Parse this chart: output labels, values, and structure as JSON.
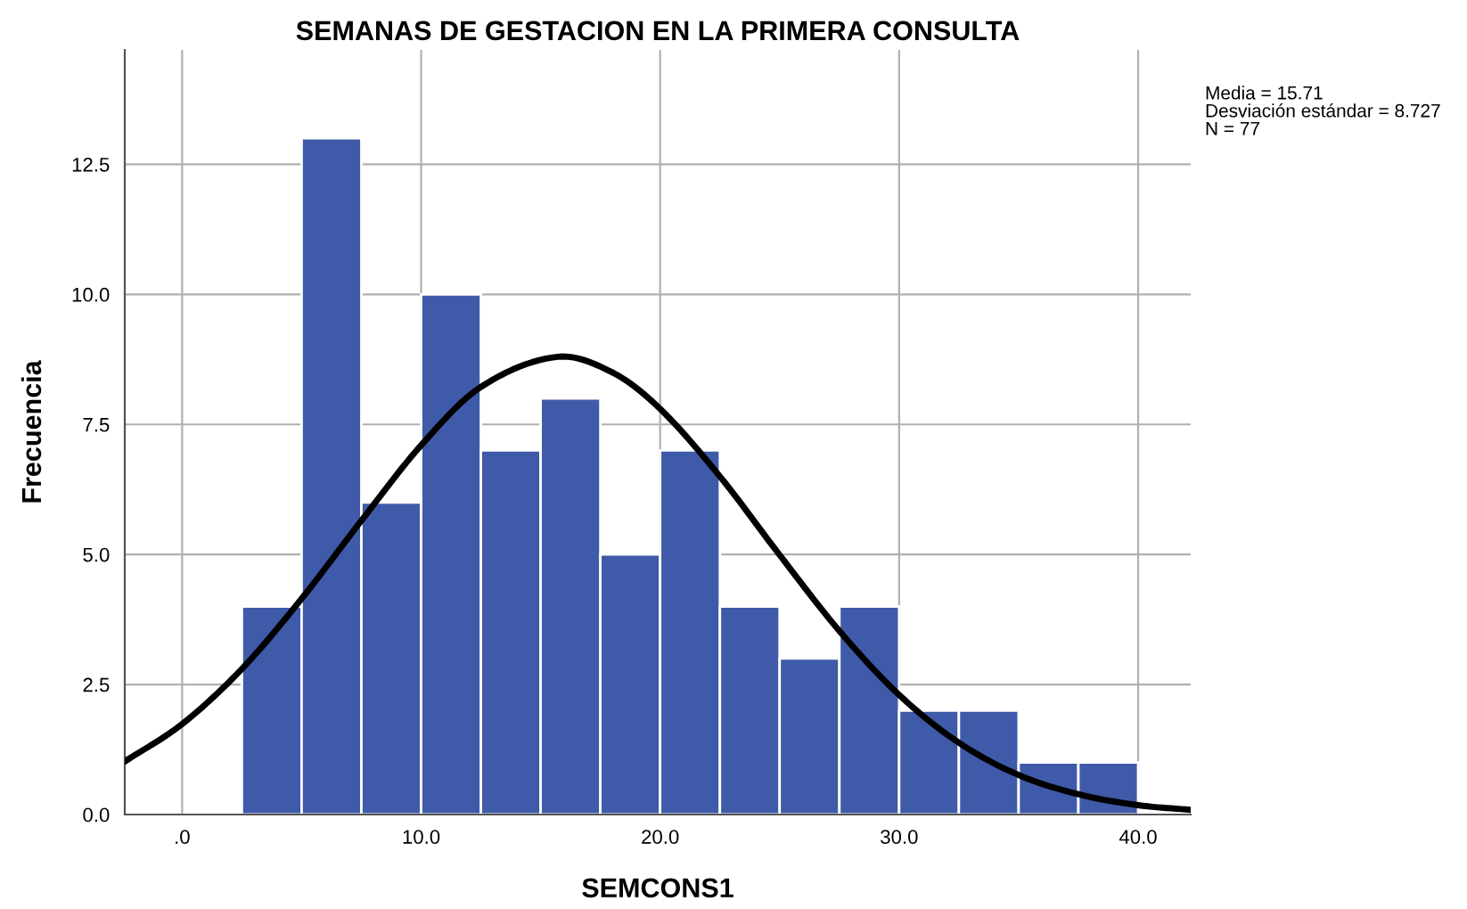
{
  "chart_data": {
    "type": "histogram",
    "title": "SEMANAS DE GESTACION EN LA PRIMERA CONSULTA",
    "xlabel": "SEMCONS1",
    "ylabel": "Frecuencia",
    "bins": [
      2.5,
      5,
      7.5,
      10,
      12.5,
      15,
      17.5,
      20,
      22.5,
      25,
      27.5,
      30,
      32.5,
      35,
      37.5,
      40
    ],
    "values": [
      4,
      13,
      6,
      10,
      7,
      8,
      5,
      7,
      4,
      3,
      4,
      2,
      2,
      1,
      1
    ],
    "color": "#3f5aa8",
    "series": [
      {
        "type": "line",
        "color": "#000000",
        "x": [
          -2.4,
          0,
          2.5,
          5,
          7.5,
          10,
          12.5,
          15.71,
          18,
          20,
          22.5,
          25,
          27.5,
          30,
          32.5,
          35,
          37.5,
          40,
          42.2
        ],
        "values": [
          1.02,
          1.74,
          2.8,
          4.15,
          5.65,
          7.1,
          8.22,
          8.8,
          8.5,
          7.8,
          6.5,
          4.99,
          3.53,
          2.3,
          1.38,
          0.76,
          0.39,
          0.18,
          0.09
        ]
      }
    ],
    "xlim": [
      -2.4,
      42.2
    ],
    "ylim": [
      0,
      14.7
    ],
    "xticks": [
      {
        "value": 0,
        "label": ".0"
      },
      {
        "value": 10,
        "label": "10.0"
      },
      {
        "value": 20,
        "label": "20.0"
      },
      {
        "value": 30,
        "label": "30.0"
      },
      {
        "value": 40,
        "label": "40.0"
      }
    ],
    "yticks": [
      {
        "value": 0,
        "label": "0.0"
      },
      {
        "value": 2.5,
        "label": "2.5"
      },
      {
        "value": 5,
        "label": "5.0"
      },
      {
        "value": 7.5,
        "label": "7.5"
      },
      {
        "value": 10,
        "label": "10.0"
      },
      {
        "value": 12.5,
        "label": "12.5"
      }
    ],
    "grid": true,
    "annotations": [
      "Media = 15.71",
      "Desviación estándar = 8.727",
      "N = 77"
    ]
  }
}
